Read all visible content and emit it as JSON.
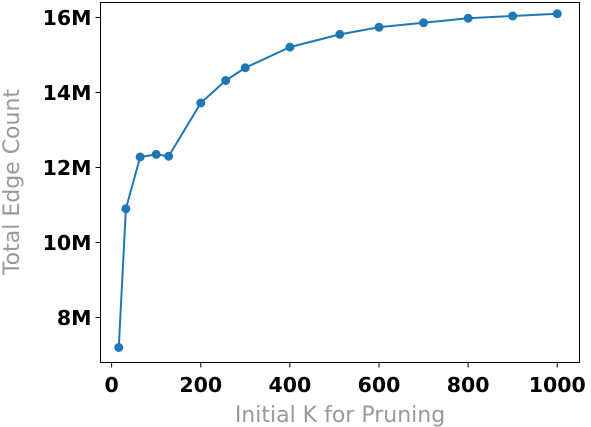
{
  "chart_data": {
    "type": "line",
    "xlabel": "Initial K for Pruning",
    "ylabel": "Total Edge Count",
    "xlim": [
      -25,
      1050
    ],
    "ylim": [
      6800000,
      16400000
    ],
    "x_ticks": [
      0,
      200,
      400,
      600,
      800,
      1000
    ],
    "x_tick_labels": [
      "0",
      "200",
      "400",
      "600",
      "800",
      "1000"
    ],
    "y_ticks": [
      8000000,
      10000000,
      12000000,
      14000000,
      16000000
    ],
    "y_tick_labels": [
      "8M",
      "10M",
      "12M",
      "14M",
      "16M"
    ],
    "grid": false,
    "series": [
      {
        "color": "#1f77b4",
        "marker": "circle",
        "points": [
          {
            "x": 16,
            "y": 7200000
          },
          {
            "x": 32,
            "y": 10900000
          },
          {
            "x": 64,
            "y": 12280000
          },
          {
            "x": 100,
            "y": 12350000
          },
          {
            "x": 128,
            "y": 12300000
          },
          {
            "x": 200,
            "y": 13720000
          },
          {
            "x": 256,
            "y": 14320000
          },
          {
            "x": 300,
            "y": 14660000
          },
          {
            "x": 400,
            "y": 15210000
          },
          {
            "x": 512,
            "y": 15550000
          },
          {
            "x": 600,
            "y": 15740000
          },
          {
            "x": 700,
            "y": 15860000
          },
          {
            "x": 800,
            "y": 15980000
          },
          {
            "x": 900,
            "y": 16040000
          },
          {
            "x": 1000,
            "y": 16100000
          }
        ]
      }
    ]
  },
  "colors": {
    "axis_label": "#999999",
    "tick_label": "#000000",
    "series": "#1f77b4"
  }
}
